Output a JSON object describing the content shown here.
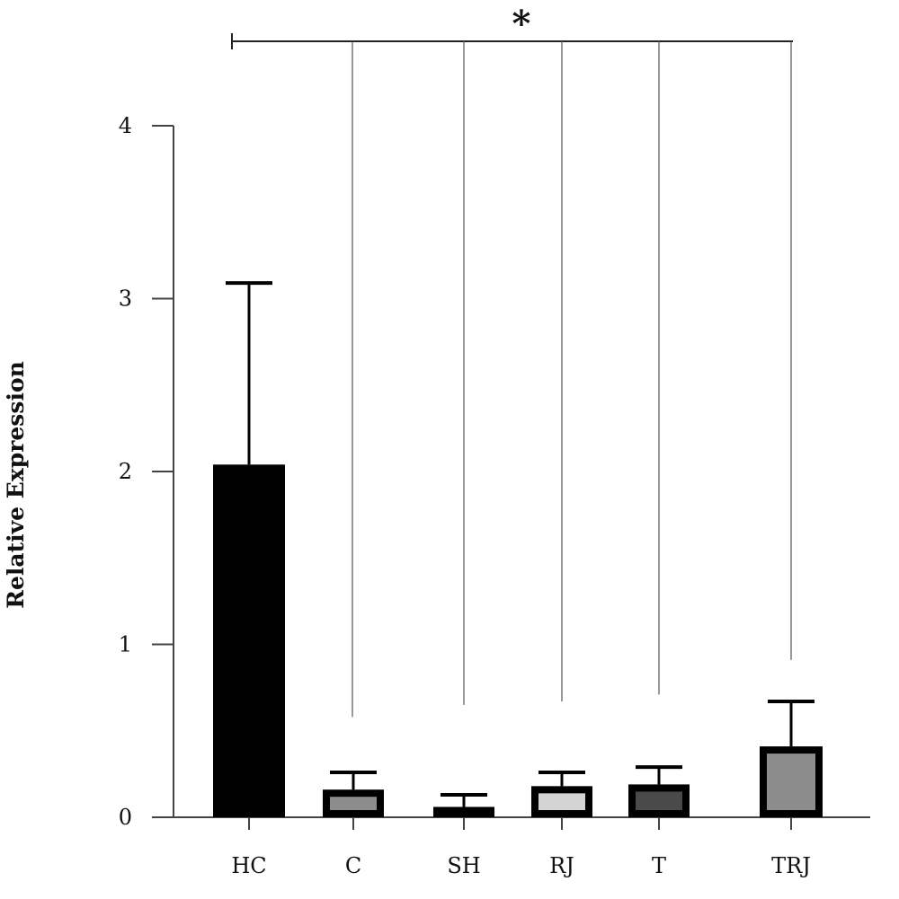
{
  "chart_data": {
    "type": "bar",
    "title": "",
    "xlabel": "",
    "ylabel": "Relative Expression",
    "ylim": [
      0,
      4
    ],
    "yticks": [
      0,
      1,
      2,
      3,
      4
    ],
    "ytick_labels": [
      "0",
      "1",
      "2",
      "3",
      "4"
    ],
    "categories": [
      "HC",
      "C",
      "SH",
      "RJ",
      "T",
      "TRJ"
    ],
    "values": [
      2.04,
      0.16,
      0.06,
      0.18,
      0.19,
      0.41
    ],
    "errors": [
      1.05,
      0.1,
      0.07,
      0.08,
      0.1,
      0.26
    ],
    "bar_fill_colors": [
      "#000000",
      "#8c8c8c",
      "#6e6e6e",
      "#d4d4d4",
      "#4a4a4a",
      "#8c8c8c"
    ],
    "bar_border_color": "#000000",
    "grid": false,
    "annotations": {
      "significance_marker": "*",
      "bracket_from": "HC",
      "bracket_to": [
        "C",
        "SH",
        "RJ",
        "T",
        "TRJ"
      ],
      "connector_bottoms": [
        0.58,
        0.65,
        0.67,
        0.71,
        0.91
      ]
    }
  }
}
